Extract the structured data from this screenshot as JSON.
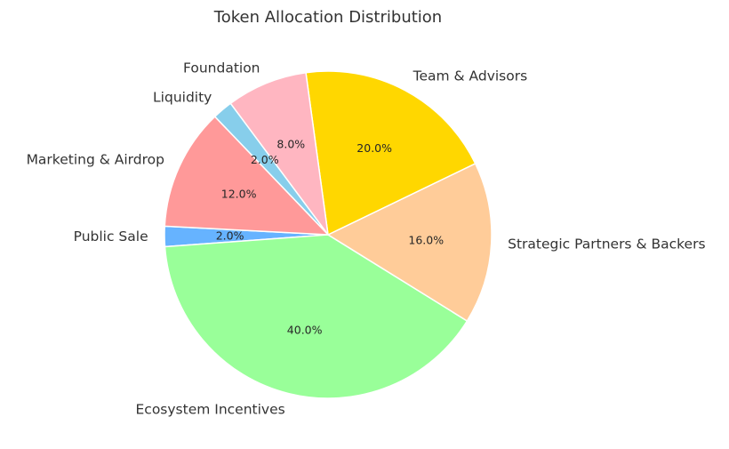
{
  "chart_data": {
    "type": "pie",
    "title": "Token Allocation Distribution",
    "categories": [
      "Public Sale",
      "Ecosystem Incentives",
      "Strategic Partners & Backers",
      "Team & Advisors",
      "Foundation",
      "Liquidity",
      "Marketing & Airdrop"
    ],
    "values": [
      2,
      40,
      16,
      20,
      8,
      2,
      12
    ],
    "percent_labels": [
      "2.0%",
      "40.0%",
      "16.0%",
      "20.0%",
      "8.0%",
      "2.0%",
      "12.0%"
    ],
    "colors": [
      "#66b3ff",
      "#99ff99",
      "#ffcc99",
      "#ffd700",
      "#ffb6c1",
      "#87ceeb",
      "#ff9999"
    ],
    "start_angle_deg": 177,
    "direction": "counterclockwise",
    "legend": "none"
  }
}
